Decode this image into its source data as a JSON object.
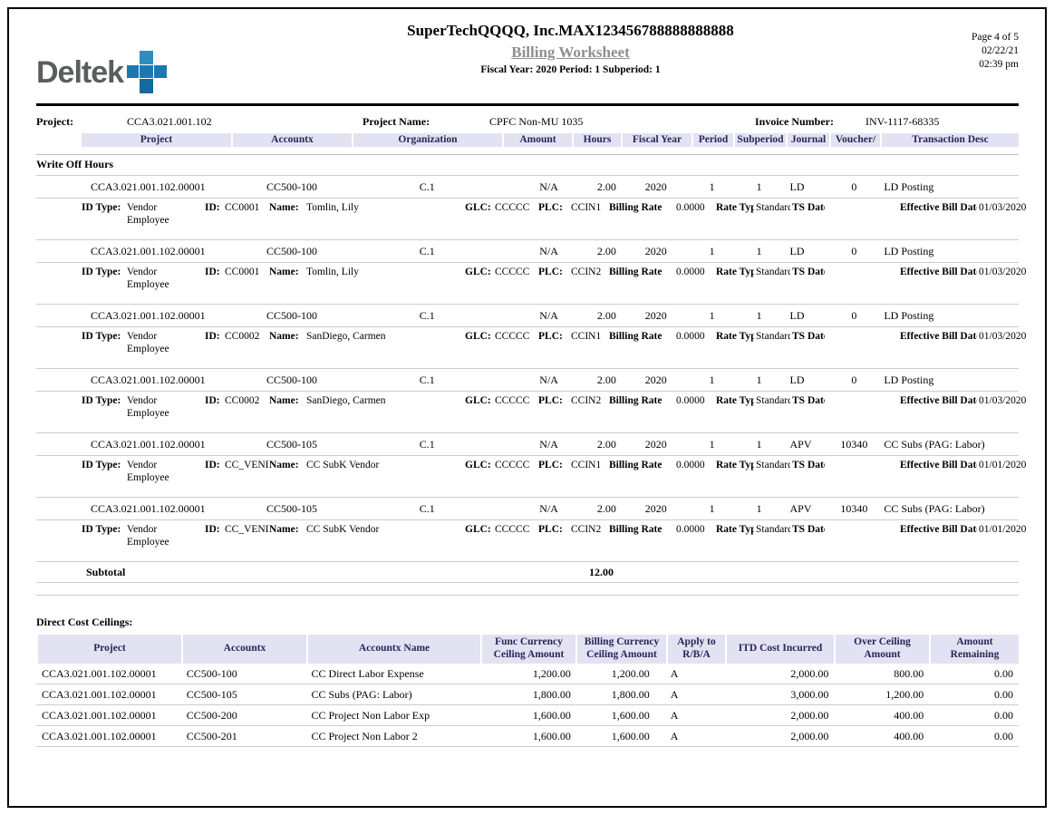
{
  "header": {
    "logo_text": "Deltek",
    "company": "SuperTechQQQQ, Inc.MAX123456788888888888",
    "report_title": "Billing Worksheet",
    "fiscal_line": "Fiscal Year: 2020  Period: 1  Subperiod: 1",
    "page_info": "Page 4 of 5",
    "date": "02/22/21",
    "time": "02:39 pm"
  },
  "project_bar": {
    "project_label": "Project:",
    "project_value": "CCA3.021.001.102",
    "name_label": "Project Name:",
    "name_value": "CPFC Non-MU 1035",
    "invoice_label": "Invoice Number:",
    "invoice_value": "INV-1117-68335"
  },
  "main_table": {
    "columns": [
      "Project",
      "Accountx",
      "Organization",
      "Amount",
      "Hours",
      "Fiscal Year",
      "Period",
      "Subperiod",
      "Journal",
      "Voucher/",
      "Transaction Desc"
    ],
    "section_title": "Write Off Hours",
    "detail_labels": {
      "id_type": "ID Type:",
      "id": "ID:",
      "name": "Name:",
      "glc": "GLC:",
      "plc": "PLC:",
      "billing_rate": "Billing Rate",
      "rate_type": "Rate Type",
      "ts_date": "TS Date",
      "effective_bill_date": "Effective Bill Date"
    },
    "transactions": [
      {
        "project": "CCA3.021.001.102.00001",
        "accountx": "CC500-100",
        "organization": "C.1",
        "amount": "N/A",
        "hours": "2.00",
        "fiscal_year": "2020",
        "period": "1",
        "subperiod": "1",
        "journal": "LD",
        "voucher": "0",
        "transaction_desc": "LD Posting",
        "id_type": "Vendor Employee",
        "id": "CC0001",
        "name": "Tomlin, Lily",
        "glc": "CCCCC",
        "plc": "CCIN1",
        "billing_rate": "0.0000",
        "rate_type": "Standard",
        "effective_bill_date": "01/03/2020"
      },
      {
        "project": "CCA3.021.001.102.00001",
        "accountx": "CC500-100",
        "organization": "C.1",
        "amount": "N/A",
        "hours": "2.00",
        "fiscal_year": "2020",
        "period": "1",
        "subperiod": "1",
        "journal": "LD",
        "voucher": "0",
        "transaction_desc": "LD Posting",
        "id_type": "Vendor Employee",
        "id": "CC0001",
        "name": "Tomlin, Lily",
        "glc": "CCCCC",
        "plc": "CCIN2",
        "billing_rate": "0.0000",
        "rate_type": "Standard",
        "effective_bill_date": "01/03/2020"
      },
      {
        "project": "CCA3.021.001.102.00001",
        "accountx": "CC500-100",
        "organization": "C.1",
        "amount": "N/A",
        "hours": "2.00",
        "fiscal_year": "2020",
        "period": "1",
        "subperiod": "1",
        "journal": "LD",
        "voucher": "0",
        "transaction_desc": "LD Posting",
        "id_type": "Vendor Employee",
        "id": "CC0002",
        "name": "SanDiego, Carmen",
        "glc": "CCCCC",
        "plc": "CCIN1",
        "billing_rate": "0.0000",
        "rate_type": "Standard",
        "effective_bill_date": "01/03/2020"
      },
      {
        "project": "CCA3.021.001.102.00001",
        "accountx": "CC500-100",
        "organization": "C.1",
        "amount": "N/A",
        "hours": "2.00",
        "fiscal_year": "2020",
        "period": "1",
        "subperiod": "1",
        "journal": "LD",
        "voucher": "0",
        "transaction_desc": "LD Posting",
        "id_type": "Vendor Employee",
        "id": "CC0002",
        "name": "SanDiego, Carmen",
        "glc": "CCCCC",
        "plc": "CCIN2",
        "billing_rate": "0.0000",
        "rate_type": "Standard",
        "effective_bill_date": "01/03/2020"
      },
      {
        "project": "CCA3.021.001.102.00001",
        "accountx": "CC500-105",
        "organization": "C.1",
        "amount": "N/A",
        "hours": "2.00",
        "fiscal_year": "2020",
        "period": "1",
        "subperiod": "1",
        "journal": "APV",
        "voucher": "10340",
        "transaction_desc": "CC Subs (PAG: Labor)",
        "id_type": "Vendor Employee",
        "id": "CC_VEND_El",
        "name": "CC SubK Vendor",
        "glc": "CCCCC",
        "plc": "CCIN1",
        "billing_rate": "0.0000",
        "rate_type": "Standard",
        "effective_bill_date": "01/01/2020"
      },
      {
        "project": "CCA3.021.001.102.00001",
        "accountx": "CC500-105",
        "organization": "C.1",
        "amount": "N/A",
        "hours": "2.00",
        "fiscal_year": "2020",
        "period": "1",
        "subperiod": "1",
        "journal": "APV",
        "voucher": "10340",
        "transaction_desc": "CC Subs (PAG: Labor)",
        "id_type": "Vendor Employee",
        "id": "CC_VEND_El",
        "name": "CC SubK Vendor",
        "glc": "CCCCC",
        "plc": "CCIN2",
        "billing_rate": "0.0000",
        "rate_type": "Standard",
        "effective_bill_date": "01/01/2020"
      }
    ],
    "subtotal_label": "Subtotal",
    "subtotal_hours": "12.00"
  },
  "ceilings_table": {
    "title": "Direct Cost Ceilings:",
    "columns": [
      "Project",
      "Accountx",
      "Accountx Name",
      "Func Currency Ceiling Amount",
      "Billing Currency Ceiling Amount",
      "Apply to R/B/A",
      "ITD Cost Incurred",
      "Over Ceiling Amount",
      "Amount Remaining"
    ],
    "rows": [
      [
        "CCA3.021.001.102.00001",
        "CC500-100",
        "CC Direct Labor Expense",
        "1,200.00",
        "1,200.00",
        "A",
        "2,000.00",
        "800.00",
        "0.00"
      ],
      [
        "CCA3.021.001.102.00001",
        "CC500-105",
        "CC Subs (PAG: Labor)",
        "1,800.00",
        "1,800.00",
        "A",
        "3,000.00",
        "1,200.00",
        "0.00"
      ],
      [
        "CCA3.021.001.102.00001",
        "CC500-200",
        "CC Project Non Labor Exp",
        "1,600.00",
        "1,600.00",
        "A",
        "2,000.00",
        "400.00",
        "0.00"
      ],
      [
        "CCA3.021.001.102.00001",
        "CC500-201",
        "CC Project Non Labor 2",
        "1,600.00",
        "1,600.00",
        "A",
        "2,000.00",
        "400.00",
        "0.00"
      ]
    ]
  },
  "colors": {
    "accent_blue": "#1b79b2",
    "header_band_bg": "#e3e2f2",
    "header_band_text": "#26265a",
    "muted_title_gray": "#8f8f8f"
  }
}
